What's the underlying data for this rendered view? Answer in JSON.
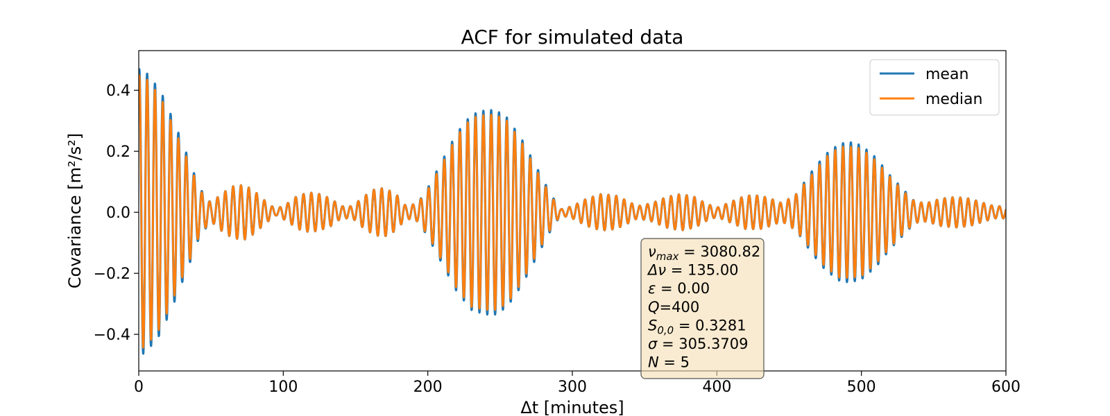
{
  "chart_data": {
    "type": "line",
    "title": "ACF for simulated data",
    "xlabel": "Δt [minutes]",
    "ylabel": "Covariance [m²/s²]",
    "xlim": [
      0,
      600
    ],
    "ylim": [
      -0.52,
      0.53
    ],
    "xticks": [
      0,
      100,
      200,
      300,
      400,
      500,
      600
    ],
    "xtick_labels": [
      "0",
      "100",
      "200",
      "300",
      "400",
      "500",
      "600"
    ],
    "yticks": [
      -0.4,
      -0.2,
      0.0,
      0.2,
      0.4
    ],
    "ytick_labels": [
      "−0.4",
      "−0.2",
      "0.0",
      "0.2",
      "0.4"
    ],
    "grid": false,
    "legend_position": "top-right",
    "oscillation_period_minutes": 5.41,
    "series": [
      {
        "name": "mean",
        "color": "#1f77b4",
        "envelope": {
          "x": [
            0,
            5,
            15,
            25,
            35,
            42,
            50,
            57,
            65,
            73,
            80,
            88,
            95,
            103,
            110,
            118,
            125,
            133,
            140,
            148,
            155,
            163,
            170,
            178,
            185,
            193,
            200,
            210,
            220,
            230,
            240,
            247,
            255,
            265,
            275,
            285,
            292,
            300,
            310,
            320,
            330,
            337,
            345,
            355,
            365,
            375,
            385,
            392,
            400,
            410,
            420,
            430,
            437,
            445,
            455,
            465,
            475,
            485,
            492,
            500,
            510,
            520,
            530,
            537,
            545,
            555,
            565,
            575,
            585,
            592,
            600
          ],
          "amplitude": [
            0.47,
            0.46,
            0.4,
            0.29,
            0.17,
            0.08,
            0.03,
            0.06,
            0.085,
            0.09,
            0.07,
            0.035,
            0.01,
            0.03,
            0.055,
            0.065,
            0.06,
            0.045,
            0.02,
            0.02,
            0.05,
            0.075,
            0.08,
            0.06,
            0.02,
            0.03,
            0.08,
            0.17,
            0.26,
            0.32,
            0.335,
            0.335,
            0.31,
            0.24,
            0.15,
            0.06,
            0.01,
            0.02,
            0.045,
            0.06,
            0.055,
            0.04,
            0.02,
            0.03,
            0.05,
            0.06,
            0.05,
            0.03,
            0.015,
            0.035,
            0.055,
            0.055,
            0.045,
            0.03,
            0.06,
            0.13,
            0.19,
            0.225,
            0.23,
            0.22,
            0.18,
            0.12,
            0.07,
            0.035,
            0.03,
            0.045,
            0.05,
            0.045,
            0.03,
            0.02,
            0.02
          ]
        }
      },
      {
        "name": "median",
        "color": "#ff7f0e",
        "envelope": {
          "x": [
            0,
            5,
            15,
            25,
            35,
            42,
            50,
            57,
            65,
            73,
            80,
            88,
            95,
            103,
            110,
            118,
            125,
            133,
            140,
            148,
            155,
            163,
            170,
            178,
            185,
            193,
            200,
            210,
            220,
            230,
            240,
            247,
            255,
            265,
            275,
            285,
            292,
            300,
            310,
            320,
            330,
            337,
            345,
            355,
            365,
            375,
            385,
            392,
            400,
            410,
            420,
            430,
            437,
            445,
            455,
            465,
            475,
            485,
            492,
            500,
            510,
            520,
            530,
            537,
            545,
            555,
            565,
            575,
            585,
            592,
            600
          ],
          "amplitude": [
            0.45,
            0.44,
            0.38,
            0.27,
            0.16,
            0.075,
            0.03,
            0.06,
            0.085,
            0.09,
            0.07,
            0.035,
            0.01,
            0.03,
            0.055,
            0.065,
            0.06,
            0.045,
            0.02,
            0.02,
            0.05,
            0.075,
            0.08,
            0.06,
            0.02,
            0.03,
            0.075,
            0.16,
            0.25,
            0.31,
            0.32,
            0.32,
            0.3,
            0.23,
            0.14,
            0.055,
            0.01,
            0.02,
            0.045,
            0.06,
            0.055,
            0.04,
            0.02,
            0.03,
            0.05,
            0.06,
            0.05,
            0.03,
            0.015,
            0.035,
            0.055,
            0.055,
            0.045,
            0.03,
            0.06,
            0.12,
            0.18,
            0.215,
            0.215,
            0.21,
            0.17,
            0.115,
            0.065,
            0.035,
            0.03,
            0.045,
            0.05,
            0.045,
            0.03,
            0.02,
            0.02
          ]
        }
      }
    ],
    "annotation": {
      "lines": [
        {
          "sym": "ν",
          "sub": "max",
          "rest": " = 3080.82"
        },
        {
          "sym": "Δν",
          "sub": "",
          "rest": " = 135.00"
        },
        {
          "sym": "ε",
          "sub": "",
          "rest": " = 0.00"
        },
        {
          "sym": "Q",
          "sub": "",
          "rest": "=400"
        },
        {
          "sym": "S",
          "sub": "0,0",
          "rest": " = 0.3281"
        },
        {
          "sym": "σ",
          "sub": "",
          "rest": " = 305.3709"
        },
        {
          "sym": "N",
          "sub": "",
          "rest": " = 5"
        }
      ],
      "background": "#f5deb3"
    }
  }
}
